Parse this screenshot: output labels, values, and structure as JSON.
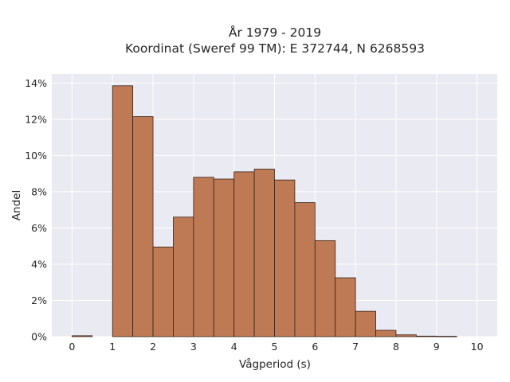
{
  "chart_data": {
    "type": "bar",
    "title": "År 1979 - 2019",
    "subtitle": "Koordinat (Sweref 99 TM): E 372744, N 6268593",
    "xlabel": "Vågperiod (s)",
    "ylabel": "Andel",
    "xlim": [
      -0.5,
      10.5
    ],
    "ylim": [
      0,
      14.5
    ],
    "x_ticks": [
      "0",
      "1",
      "2",
      "3",
      "4",
      "5",
      "6",
      "7",
      "8",
      "9",
      "10"
    ],
    "y_ticks": [
      "0%",
      "2%",
      "4%",
      "6%",
      "8%",
      "10%",
      "12%",
      "14%"
    ],
    "bin_width": 0.5,
    "bins": [
      {
        "start": 0.0,
        "value": 0.05
      },
      {
        "start": 0.5,
        "value": 0.0
      },
      {
        "start": 1.0,
        "value": 13.85
      },
      {
        "start": 1.5,
        "value": 12.15
      },
      {
        "start": 2.0,
        "value": 4.95
      },
      {
        "start": 2.5,
        "value": 6.6
      },
      {
        "start": 3.0,
        "value": 8.8
      },
      {
        "start": 3.5,
        "value": 8.7
      },
      {
        "start": 4.0,
        "value": 9.1
      },
      {
        "start": 4.5,
        "value": 9.25
      },
      {
        "start": 5.0,
        "value": 8.65
      },
      {
        "start": 5.5,
        "value": 7.4
      },
      {
        "start": 6.0,
        "value": 5.3
      },
      {
        "start": 6.5,
        "value": 3.25
      },
      {
        "start": 7.0,
        "value": 1.4
      },
      {
        "start": 7.5,
        "value": 0.35
      },
      {
        "start": 8.0,
        "value": 0.1
      },
      {
        "start": 8.5,
        "value": 0.03
      },
      {
        "start": 9.0,
        "value": 0.02
      }
    ],
    "grid": true,
    "colors": {
      "bar_fill": "#bd7a55",
      "bar_edge": "#3a2418",
      "plot_bg": "#eaeaf2",
      "grid": "#ffffff",
      "text": "#262626"
    }
  }
}
